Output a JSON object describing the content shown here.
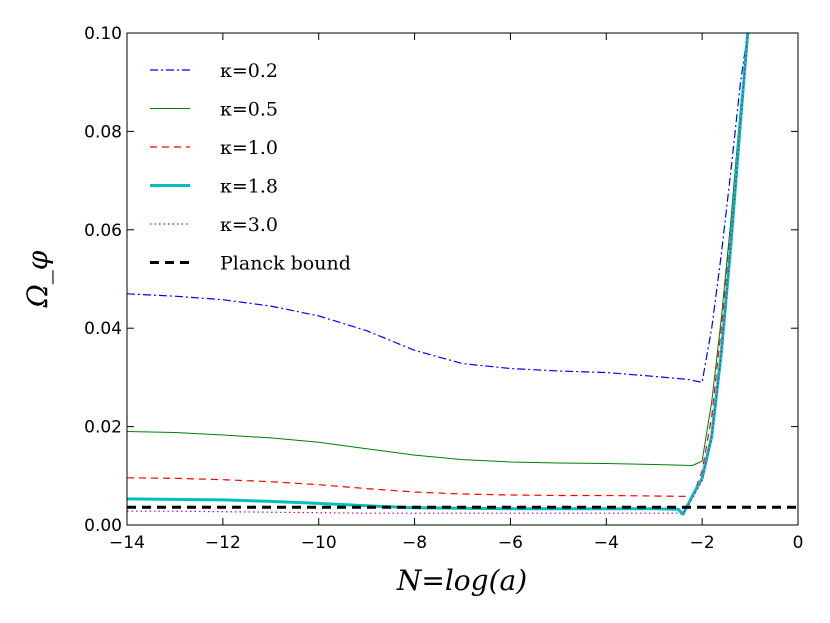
{
  "chart_data": {
    "type": "line",
    "title": "",
    "xlabel": "N=log(a)",
    "ylabel": "Ω_φ",
    "xlim": [
      -14,
      0
    ],
    "ylim": [
      0.0,
      0.1
    ],
    "xticks": [
      -14,
      -12,
      -10,
      -8,
      -6,
      -4,
      -2,
      0
    ],
    "xtick_labels": [
      "−14",
      "−12",
      "−10",
      "−8",
      "−6",
      "−4",
      "−2",
      "0"
    ],
    "yticks": [
      0.0,
      0.02,
      0.04,
      0.06,
      0.08,
      0.1
    ],
    "ytick_labels": [
      "0.00",
      "0.02",
      "0.04",
      "0.06",
      "0.08",
      "0.10"
    ],
    "grid": false,
    "legend_position": "top-left",
    "series": [
      {
        "name": "κ=0.2",
        "color": "#0000ff",
        "style": "dashdot",
        "x": [
          -14,
          -13,
          -12,
          -11,
          -10,
          -9,
          -8,
          -7,
          -6,
          -5,
          -4,
          -3,
          -2.3,
          -2.0,
          -1.8,
          -1.6,
          -1.4,
          -1.2,
          -1.05
        ],
        "y": [
          0.047,
          0.0465,
          0.0458,
          0.0445,
          0.0425,
          0.0395,
          0.0355,
          0.0328,
          0.0318,
          0.0313,
          0.031,
          0.0302,
          0.0296,
          0.029,
          0.04,
          0.055,
          0.072,
          0.09,
          0.1
        ]
      },
      {
        "name": "κ=0.5",
        "color": "#008000",
        "style": "solid",
        "x": [
          -14,
          -13,
          -12,
          -11,
          -10,
          -9,
          -8,
          -7,
          -6,
          -5,
          -4,
          -3,
          -2.2,
          -2.0,
          -1.8,
          -1.6,
          -1.4,
          -1.2,
          -1.05
        ],
        "y": [
          0.019,
          0.0188,
          0.0183,
          0.0177,
          0.0168,
          0.0155,
          0.0142,
          0.0133,
          0.0128,
          0.0126,
          0.0125,
          0.0123,
          0.0121,
          0.013,
          0.025,
          0.042,
          0.062,
          0.085,
          0.1
        ]
      },
      {
        "name": "κ=1.0",
        "color": "#ff0000",
        "style": "dashed",
        "x": [
          -14,
          -13,
          -12,
          -11,
          -10,
          -9,
          -8,
          -7,
          -6,
          -5,
          -4,
          -3,
          -2.2,
          -2.0,
          -1.8,
          -1.6,
          -1.4,
          -1.2,
          -1.05
        ],
        "y": [
          0.0096,
          0.0095,
          0.0092,
          0.0088,
          0.0082,
          0.0074,
          0.0067,
          0.0063,
          0.0061,
          0.006,
          0.006,
          0.0059,
          0.0058,
          0.011,
          0.022,
          0.04,
          0.06,
          0.083,
          0.1
        ]
      },
      {
        "name": "κ=1.8",
        "color": "#00bfbf",
        "style": "solid-thick",
        "x": [
          -14,
          -13,
          -12,
          -11,
          -10,
          -9,
          -8,
          -7,
          -6,
          -5,
          -4,
          -3,
          -2.5,
          -2.4,
          -2.2,
          -2.0,
          -1.8,
          -1.6,
          -1.4,
          -1.2,
          -1.05
        ],
        "y": [
          0.0053,
          0.0052,
          0.0051,
          0.0048,
          0.0044,
          0.0039,
          0.0035,
          0.0034,
          0.0033,
          0.0033,
          0.0033,
          0.0033,
          0.0032,
          0.0022,
          0.006,
          0.0095,
          0.018,
          0.035,
          0.057,
          0.082,
          0.1
        ]
      },
      {
        "name": "κ=3.0",
        "color": "#bf00bf",
        "style": "dotted",
        "x": [
          -14,
          -13,
          -12,
          -11,
          -10,
          -9,
          -8,
          -7,
          -6,
          -5,
          -4,
          -3,
          -2.5,
          -2.4,
          -2.2,
          -2.0,
          -1.8,
          -1.6,
          -1.4,
          -1.2,
          -1.05
        ],
        "y": [
          0.0028,
          0.0028,
          0.0027,
          0.0026,
          0.0025,
          0.0024,
          0.0024,
          0.0024,
          0.0024,
          0.0024,
          0.0024,
          0.0024,
          0.0024,
          0.0022,
          0.0055,
          0.009,
          0.018,
          0.035,
          0.057,
          0.082,
          0.1
        ]
      },
      {
        "name": "Planck bound",
        "color": "#000000",
        "style": "dashed-thick",
        "x": [
          -14,
          0
        ],
        "y": [
          0.0036,
          0.0036
        ]
      }
    ]
  }
}
